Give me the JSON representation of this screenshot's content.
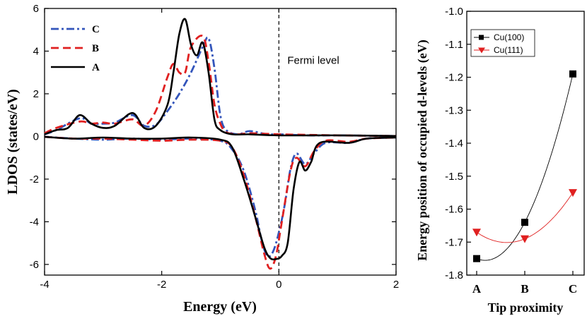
{
  "chart_data": [
    {
      "type": "line",
      "xlabel": "Energy (eV)",
      "ylabel": "LDOS (states/eV)",
      "xlim": [
        -4,
        2
      ],
      "ylim": [
        -6.5,
        6
      ],
      "x_ticks": [
        "-4",
        "-2",
        "0",
        "2"
      ],
      "y_ticks": [
        "6",
        "4",
        "2",
        "0",
        "-2",
        "-4",
        "-6"
      ],
      "annotation": "Fermi level",
      "legend": {
        "position": "top-left",
        "entries": [
          "C",
          "B",
          "A"
        ]
      },
      "series": [
        {
          "name": "C",
          "color": "#3355bb",
          "style": "dash-dot",
          "spin_up": [
            [
              -4,
              0.1
            ],
            [
              -3.8,
              0.3
            ],
            [
              -3.4,
              0.85
            ],
            [
              -3.2,
              0.6
            ],
            [
              -3,
              0.6
            ],
            [
              -2.8,
              0.65
            ],
            [
              -2.5,
              1.0
            ],
            [
              -2.3,
              0.5
            ],
            [
              -2.1,
              0.55
            ],
            [
              -1.9,
              1.2
            ],
            [
              -1.7,
              2.0
            ],
            [
              -1.5,
              3.0
            ],
            [
              -1.3,
              4.2
            ],
            [
              -1.2,
              4.6
            ],
            [
              -1.1,
              3.2
            ],
            [
              -1.0,
              1.0
            ],
            [
              -0.9,
              0.3
            ],
            [
              -0.7,
              0.1
            ],
            [
              -0.5,
              0.25
            ],
            [
              -0.2,
              0.1
            ],
            [
              0,
              0.1
            ],
            [
              0.5,
              0.05
            ],
            [
              1,
              0.05
            ],
            [
              2,
              0.02
            ]
          ],
          "spin_down": [
            [
              -4,
              -0.02
            ],
            [
              -3.5,
              -0.1
            ],
            [
              -3,
              -0.15
            ],
            [
              -2.5,
              -0.1
            ],
            [
              -2,
              -0.15
            ],
            [
              -1.5,
              -0.1
            ],
            [
              -1,
              -0.2
            ],
            [
              -0.8,
              -0.6
            ],
            [
              -0.6,
              -1.6
            ],
            [
              -0.4,
              -3.5
            ],
            [
              -0.3,
              -4.8
            ],
            [
              -0.2,
              -5.6
            ],
            [
              -0.1,
              -5.4
            ],
            [
              0,
              -4.5
            ],
            [
              0.1,
              -3.2
            ],
            [
              0.2,
              -1.5
            ],
            [
              0.3,
              -0.8
            ],
            [
              0.45,
              -1.3
            ],
            [
              0.6,
              -0.8
            ],
            [
              0.8,
              -0.3
            ],
            [
              1.2,
              -0.3
            ],
            [
              1.5,
              -0.1
            ],
            [
              2,
              -0.05
            ]
          ]
        },
        {
          "name": "B",
          "color": "#e02020",
          "style": "dash",
          "spin_up": [
            [
              -4,
              0.15
            ],
            [
              -3.8,
              0.4
            ],
            [
              -3.4,
              0.7
            ],
            [
              -3.2,
              0.6
            ],
            [
              -3,
              0.65
            ],
            [
              -2.8,
              0.6
            ],
            [
              -2.5,
              0.8
            ],
            [
              -2.3,
              0.5
            ],
            [
              -2.1,
              1.2
            ],
            [
              -1.9,
              2.8
            ],
            [
              -1.8,
              3.4
            ],
            [
              -1.7,
              3.0
            ],
            [
              -1.6,
              3.0
            ],
            [
              -1.5,
              4.2
            ],
            [
              -1.3,
              4.7
            ],
            [
              -1.2,
              3.5
            ],
            [
              -1.1,
              1.5
            ],
            [
              -1.0,
              0.6
            ],
            [
              -0.9,
              0.2
            ],
            [
              -0.7,
              0.1
            ],
            [
              -0.5,
              0.15
            ],
            [
              0,
              0.1
            ],
            [
              1,
              0.05
            ],
            [
              2,
              0.02
            ]
          ],
          "spin_down": [
            [
              -4,
              -0.02
            ],
            [
              -3.5,
              -0.1
            ],
            [
              -3,
              -0.1
            ],
            [
              -2.5,
              -0.15
            ],
            [
              -2,
              -0.2
            ],
            [
              -1.5,
              -0.15
            ],
            [
              -1,
              -0.2
            ],
            [
              -0.8,
              -0.5
            ],
            [
              -0.6,
              -1.8
            ],
            [
              -0.4,
              -3.8
            ],
            [
              -0.25,
              -5.5
            ],
            [
              -0.15,
              -6.2
            ],
            [
              -0.05,
              -5.6
            ],
            [
              0.05,
              -4.0
            ],
            [
              0.2,
              -1.6
            ],
            [
              0.3,
              -1.0
            ],
            [
              0.45,
              -1.4
            ],
            [
              0.6,
              -0.7
            ],
            [
              0.8,
              -0.2
            ],
            [
              1.2,
              -0.25
            ],
            [
              1.5,
              -0.1
            ],
            [
              2,
              -0.05
            ]
          ]
        },
        {
          "name": "A",
          "color": "#000000",
          "style": "solid",
          "spin_up": [
            [
              -4,
              0.1
            ],
            [
              -3.8,
              0.3
            ],
            [
              -3.6,
              0.4
            ],
            [
              -3.4,
              1.0
            ],
            [
              -3.2,
              0.6
            ],
            [
              -3,
              0.4
            ],
            [
              -2.8,
              0.5
            ],
            [
              -2.5,
              1.1
            ],
            [
              -2.3,
              0.4
            ],
            [
              -2.1,
              0.5
            ],
            [
              -1.9,
              1.5
            ],
            [
              -1.8,
              3.0
            ],
            [
              -1.7,
              4.8
            ],
            [
              -1.6,
              5.5
            ],
            [
              -1.5,
              4.3
            ],
            [
              -1.4,
              3.8
            ],
            [
              -1.3,
              4.4
            ],
            [
              -1.2,
              3.0
            ],
            [
              -1.1,
              0.8
            ],
            [
              -1.0,
              0.3
            ],
            [
              -0.8,
              0.1
            ],
            [
              -0.5,
              0.1
            ],
            [
              0,
              0.05
            ],
            [
              1,
              0.05
            ],
            [
              2,
              0.02
            ]
          ],
          "spin_down": [
            [
              -4,
              -0.02
            ],
            [
              -3.5,
              -0.1
            ],
            [
              -3,
              -0.05
            ],
            [
              -2.5,
              -0.1
            ],
            [
              -2,
              -0.1
            ],
            [
              -1.5,
              -0.05
            ],
            [
              -1,
              -0.15
            ],
            [
              -0.8,
              -0.5
            ],
            [
              -0.6,
              -2.0
            ],
            [
              -0.4,
              -3.8
            ],
            [
              -0.25,
              -5.2
            ],
            [
              -0.15,
              -5.7
            ],
            [
              -0.05,
              -5.75
            ],
            [
              0.05,
              -5.6
            ],
            [
              0.15,
              -5.0
            ],
            [
              0.25,
              -2.5
            ],
            [
              0.35,
              -1.2
            ],
            [
              0.45,
              -1.6
            ],
            [
              0.55,
              -1.2
            ],
            [
              0.7,
              -0.3
            ],
            [
              1.2,
              -0.3
            ],
            [
              1.5,
              -0.1
            ],
            [
              2,
              -0.05
            ]
          ]
        }
      ]
    },
    {
      "type": "scatter",
      "xlabel": "Tip proximity",
      "ylabel": "Energy position of occupied d-levels (eV)",
      "categories": [
        "A",
        "B",
        "C"
      ],
      "ylim": [
        -1.8,
        -1.0
      ],
      "y_ticks": [
        "-1.0",
        "-1.1",
        "-1.2",
        "-1.3",
        "-1.4",
        "-1.5",
        "-1.6",
        "-1.7",
        "-1.8"
      ],
      "legend": {
        "position": "top-left",
        "entries": [
          "Cu(100)",
          "Cu(111)"
        ]
      },
      "series": [
        {
          "name": "Cu(100)",
          "color": "#000000",
          "marker": "square",
          "values": [
            -1.75,
            -1.64,
            -1.19
          ]
        },
        {
          "name": "Cu(111)",
          "color": "#e02020",
          "marker": "triangle-down",
          "values": [
            -1.67,
            -1.69,
            -1.55
          ]
        }
      ]
    }
  ]
}
